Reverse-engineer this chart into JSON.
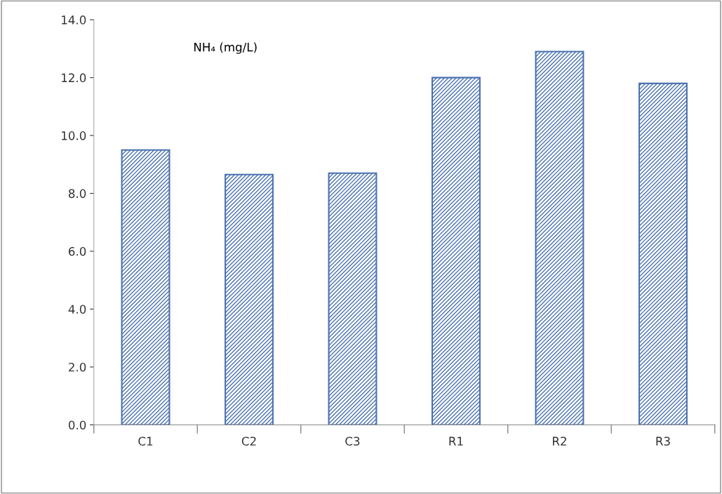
{
  "chart_data": {
    "type": "bar",
    "categories": [
      "C1",
      "C2",
      "C3",
      "R1",
      "R2",
      "R3"
    ],
    "values": [
      9.5,
      8.65,
      8.7,
      12.0,
      12.9,
      11.8
    ],
    "color": "#4a72b0",
    "ylim": [
      0,
      14
    ],
    "yticks": [
      {
        "value": 0,
        "label": "0.0"
      },
      {
        "value": 2,
        "label": "2.0"
      },
      {
        "value": 4,
        "label": "4.0"
      },
      {
        "value": 6,
        "label": "6.0"
      },
      {
        "value": 8,
        "label": "8.0"
      },
      {
        "value": 10,
        "label": "10.0"
      },
      {
        "value": 12,
        "label": "12.0"
      },
      {
        "value": 14,
        "label": "14.0"
      }
    ],
    "annotations": [
      "NH₄ (mg/L)"
    ],
    "grid": false
  }
}
